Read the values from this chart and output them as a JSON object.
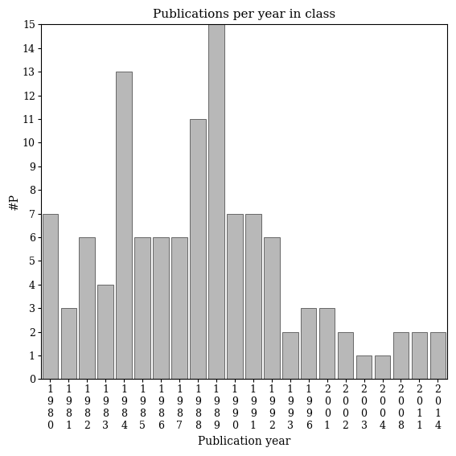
{
  "title": "Publications per year in class",
  "xlabel": "Publication year",
  "ylabel": "#P",
  "categories": [
    "1980",
    "1981",
    "1982",
    "1983",
    "1984",
    "1985",
    "1986",
    "1987",
    "1988",
    "1989",
    "1990",
    "1991",
    "1992",
    "1993",
    "1996",
    "2001",
    "2002",
    "2003",
    "2004",
    "2008",
    "2011",
    "2014"
  ],
  "values": [
    7,
    3,
    6,
    4,
    13,
    6,
    6,
    6,
    11,
    15,
    7,
    7,
    6,
    2,
    3,
    3,
    2,
    1,
    1,
    2,
    2,
    2
  ],
  "bar_color": "#b8b8b8",
  "bar_edge_color": "#555555",
  "ylim": [
    0,
    15
  ],
  "yticks": [
    0,
    1,
    2,
    3,
    4,
    5,
    6,
    7,
    8,
    9,
    10,
    11,
    12,
    13,
    14,
    15
  ],
  "background_color": "#ffffff",
  "title_fontsize": 11,
  "label_fontsize": 10,
  "tick_fontsize": 9
}
